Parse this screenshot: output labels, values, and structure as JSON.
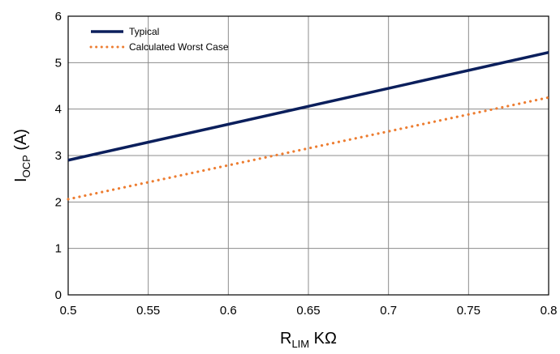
{
  "chart_data": {
    "type": "line",
    "xlim": [
      0.5,
      0.8
    ],
    "ylim": [
      0,
      6
    ],
    "x_ticks": [
      "0.5",
      "0.55",
      "0.6",
      "0.65",
      "0.7",
      "0.75",
      "0.8"
    ],
    "y_ticks": [
      "0",
      "1",
      "2",
      "3",
      "4",
      "5",
      "6"
    ],
    "x_tick_values": [
      0.5,
      0.55,
      0.6,
      0.65,
      0.7,
      0.75,
      0.8
    ],
    "y_tick_values": [
      0,
      1,
      2,
      3,
      4,
      5,
      6
    ],
    "xlabel": {
      "main": "R",
      "sub": "LIM",
      "unit": " KΩ"
    },
    "ylabel": {
      "main": "I",
      "sub": "OCP",
      "unit": " (A)"
    },
    "grid": true,
    "legend_position": "top-left",
    "series": [
      {
        "name": "Typical",
        "color": "#0b1f5c",
        "style": "solid",
        "x": [
          0.5,
          0.8
        ],
        "y": [
          2.9,
          5.22
        ]
      },
      {
        "name": "Calculated Worst Case",
        "color": "#ed7d31",
        "style": "dotted",
        "x": [
          0.5,
          0.8
        ],
        "y": [
          2.06,
          4.25
        ]
      }
    ]
  }
}
